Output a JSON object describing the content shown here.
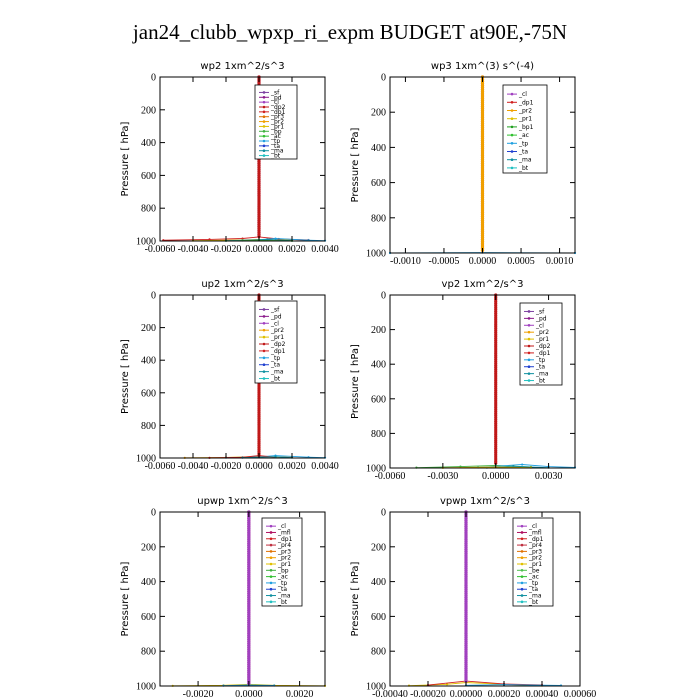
{
  "title": "jan24_clubb_wpxp_ri_expm  BUDGET at90E,-75N",
  "colors": {
    "sf": "#7b3fa0",
    "pd": "#8b1a8b",
    "cl": "#a040c0",
    "dp2": "#c01818",
    "dp1": "#d02020",
    "pr3": "#e07000",
    "pr2": "#f0a000",
    "pr1": "#e0c000",
    "bp1": "#20a020",
    "bp": "#40b040",
    "ac": "#30c030",
    "tp": "#20a0e0",
    "ta": "#2040d0",
    "ma": "#1090a0",
    "bt": "#20c0c0",
    "mfl": "#b01060",
    "pr4": "#c03040",
    "be": "#50c050"
  },
  "chart_data": [
    {
      "type": "line",
      "title": "wp2   1xm^2/s^3",
      "ylabel": "Pressure  [ hPa]",
      "xlim": [
        -0.006,
        0.004
      ],
      "ylim": [
        1000,
        0
      ],
      "xticks": [
        -0.006,
        -0.004,
        -0.002,
        0.0,
        0.002,
        0.004
      ],
      "xtick_labels": [
        "-0.0060",
        "-0.0040",
        "-0.0020",
        "0.0000",
        "0.0020",
        "0.0040"
      ],
      "yticks": [
        0,
        200,
        400,
        600,
        800,
        1000
      ],
      "ytick_labels": [
        "0",
        "200",
        "400",
        "600",
        "800",
        "1000"
      ],
      "legend": [
        "_sf",
        "_pd",
        "_cl",
        "_dp2",
        "_dp1",
        "_pr3",
        "_pr2",
        "_pr1",
        "_bp",
        "_ac",
        "_tp",
        "_ta",
        "_ma",
        "_bt"
      ],
      "legend_keys": [
        "sf",
        "pd",
        "cl",
        "dp2",
        "dp1",
        "pr3",
        "pr2",
        "pr1",
        "bp",
        "ac",
        "tp",
        "ta",
        "ma",
        "bt"
      ],
      "series": [
        {
          "key": "dp1",
          "points": [
            [
              -0.0058,
              995
            ],
            [
              -0.003,
              990
            ],
            [
              -0.001,
              985
            ],
            [
              0.0,
              975
            ],
            [
              0.0012,
              988
            ],
            [
              0.003,
              994
            ]
          ]
        },
        {
          "key": "pr1",
          "points": [
            [
              -0.004,
              998
            ],
            [
              -0.001,
              994
            ],
            [
              0.0,
              990
            ],
            [
              0.002,
              995
            ]
          ]
        },
        {
          "key": "tp",
          "points": [
            [
              -0.002,
              998
            ],
            [
              0.0,
              992
            ],
            [
              0.001,
              985
            ],
            [
              0.003,
              995
            ],
            [
              0.004,
              998
            ]
          ]
        },
        {
          "key": "ma",
          "points": [
            [
              -0.001,
              997
            ],
            [
              0.0005,
              990
            ],
            [
              0.002,
              998
            ]
          ]
        },
        {
          "key": "bp",
          "points": [
            [
              -0.002,
              999
            ],
            [
              0.0,
              996
            ],
            [
              0.002,
              999
            ]
          ]
        },
        {
          "key": "pd",
          "points": [
            [
              0.0,
              0
            ],
            [
              0.0,
              980
            ]
          ],
          "dense": true
        },
        {
          "key": "dp2",
          "points": [
            [
              0.0,
              0
            ],
            [
              0.0,
              980
            ]
          ],
          "dense": true
        }
      ]
    },
    {
      "type": "line",
      "title": "wp3   1xm^(3) s^(-4)",
      "ylabel": "Pressure  [ hPa]",
      "xlim": [
        -0.0012,
        0.0012
      ],
      "ylim": [
        1000,
        0
      ],
      "xticks": [
        -0.001,
        -0.0005,
        0.0,
        0.0005,
        0.001
      ],
      "xtick_labels": [
        "-0.0010",
        "-0.0005",
        "0.0000",
        "0.0005",
        "0.0010"
      ],
      "yticks": [
        0,
        200,
        400,
        600,
        800,
        1000
      ],
      "ytick_labels": [
        "0",
        "200",
        "400",
        "600",
        "800",
        "1000"
      ],
      "legend": [
        "_cl",
        "_dp1",
        "_pr2",
        "_pr1",
        "_bp1",
        "_ac",
        "_tp",
        "_ta",
        "_ma",
        "_bt"
      ],
      "legend_keys": [
        "cl",
        "dp1",
        "pr2",
        "pr1",
        "bp1",
        "ac",
        "tp",
        "ta",
        "ma",
        "bt"
      ],
      "series": [
        {
          "key": "tp",
          "points": [
            [
              -0.0012,
              1000
            ],
            [
              0.0,
              998
            ],
            [
              0.0012,
              1000
            ]
          ]
        },
        {
          "key": "dp1",
          "points": [
            [
              0.0,
              0
            ],
            [
              0.0,
              995
            ]
          ],
          "dense": true
        },
        {
          "key": "pr2",
          "points": [
            [
              0.0,
              0
            ],
            [
              0.0,
              995
            ]
          ],
          "dense": true
        }
      ]
    },
    {
      "type": "line",
      "title": "up2   1xm^2/s^3",
      "ylabel": "Pressure  [ hPa]",
      "xlim": [
        -0.006,
        0.004
      ],
      "ylim": [
        1000,
        0
      ],
      "xticks": [
        -0.006,
        -0.004,
        -0.002,
        0.0,
        0.002,
        0.004
      ],
      "xtick_labels": [
        "-0.0060",
        "-0.0040",
        "-0.0020",
        "0.0000",
        "0.0020",
        "0.0040"
      ],
      "yticks": [
        0,
        200,
        400,
        600,
        800,
        1000
      ],
      "ytick_labels": [
        "0",
        "200",
        "400",
        "600",
        "800",
        "1000"
      ],
      "legend": [
        "_sf",
        "_pd",
        "_cl",
        "_pr2",
        "_pr1",
        "_dp2",
        "_dp1",
        "_tp",
        "_ta",
        "_ma",
        "_bt"
      ],
      "legend_keys": [
        "sf",
        "pd",
        "cl",
        "pr2",
        "pr1",
        "dp2",
        "dp1",
        "tp",
        "ta",
        "ma",
        "bt"
      ],
      "series": [
        {
          "key": "pr2",
          "points": [
            [
              -0.0045,
              999
            ],
            [
              -0.002,
              997
            ],
            [
              0.0,
              990
            ],
            [
              0.002,
              996
            ]
          ]
        },
        {
          "key": "tp",
          "points": [
            [
              -0.002,
              998
            ],
            [
              0.0,
              993
            ],
            [
              0.001,
              985
            ],
            [
              0.003,
              995
            ],
            [
              0.004,
              998
            ]
          ]
        },
        {
          "key": "dp1",
          "points": [
            [
              -0.003,
              999
            ],
            [
              -0.001,
              996
            ],
            [
              0.0,
              985
            ],
            [
              0.001,
              995
            ]
          ]
        },
        {
          "key": "ma",
          "points": [
            [
              -0.001,
              998
            ],
            [
              0.001,
              992
            ],
            [
              0.002,
              998
            ]
          ]
        },
        {
          "key": "dp2",
          "points": [
            [
              0.0,
              0
            ],
            [
              0.0,
              985
            ]
          ],
          "dense": true
        }
      ]
    },
    {
      "type": "line",
      "title": "vp2   1xm^2/s^3",
      "ylabel": "Pressure  [ hPa]",
      "xlim": [
        -0.006,
        0.0045
      ],
      "ylim": [
        1000,
        0
      ],
      "xticks": [
        -0.006,
        -0.003,
        0.0,
        0.003
      ],
      "xtick_labels": [
        "-0.0060",
        "-0.0030",
        "0.0000",
        "0.0030"
      ],
      "yticks": [
        0,
        200,
        400,
        600,
        800,
        1000
      ],
      "ytick_labels": [
        "0",
        "200",
        "400",
        "600",
        "800",
        "1000"
      ],
      "legend": [
        "_sf",
        "_pd",
        "_cl",
        "_pr2",
        "_pr1",
        "_dp2",
        "_dp1",
        "_tp",
        "_ta",
        "_ma",
        "_bt"
      ],
      "legend_keys": [
        "sf",
        "pd",
        "cl",
        "pr2",
        "pr1",
        "dp2",
        "dp1",
        "tp",
        "ta",
        "ma",
        "bt"
      ],
      "series": [
        {
          "key": "bp",
          "points": [
            [
              -0.0045,
              998
            ],
            [
              -0.002,
              992
            ],
            [
              0.0,
              985
            ],
            [
              0.002,
              994
            ]
          ]
        },
        {
          "key": "tp",
          "points": [
            [
              -0.001,
              997
            ],
            [
              0.0,
              990
            ],
            [
              0.0015,
              980
            ],
            [
              0.003,
              992
            ],
            [
              0.0045,
              997
            ]
          ]
        },
        {
          "key": "ma",
          "points": [
            [
              -0.0005,
              998
            ],
            [
              0.001,
              990
            ],
            [
              0.003,
              998
            ]
          ]
        },
        {
          "key": "pr1",
          "points": [
            [
              -0.003,
              999
            ],
            [
              0.0,
              994
            ],
            [
              0.002,
              998
            ]
          ]
        },
        {
          "key": "dp2",
          "points": [
            [
              0.0,
              0
            ],
            [
              0.0,
              980
            ]
          ],
          "dense": true
        }
      ]
    },
    {
      "type": "line",
      "title": "upwp   1xm^2/s^3",
      "ylabel": "Pressure  [ hPa]",
      "xlim": [
        -0.0035,
        0.003
      ],
      "ylim": [
        1000,
        0
      ],
      "xticks": [
        -0.002,
        0.0,
        0.002
      ],
      "xtick_labels": [
        "-0.0020",
        "0.0000",
        "0.0020"
      ],
      "yticks": [
        0,
        200,
        400,
        600,
        800,
        1000
      ],
      "ytick_labels": [
        "0",
        "200",
        "400",
        "600",
        "800",
        "1000"
      ],
      "legend": [
        "_cl",
        "_mfl",
        "_dp1",
        "_pr4",
        "_pr3",
        "_pr2",
        "_pr1",
        "_bp",
        "_ac",
        "_tp",
        "_ta",
        "_ma",
        "_bt"
      ],
      "legend_keys": [
        "cl",
        "mfl",
        "dp1",
        "pr4",
        "pr3",
        "pr2",
        "pr1",
        "bp",
        "ac",
        "tp",
        "ta",
        "ma",
        "bt"
      ],
      "series": [
        {
          "key": "pr1",
          "points": [
            [
              -0.003,
              999
            ],
            [
              -0.001,
              996
            ],
            [
              0.0,
              990
            ],
            [
              0.001,
              996
            ],
            [
              0.003,
              999
            ]
          ]
        },
        {
          "key": "tp",
          "points": [
            [
              -0.001,
              998
            ],
            [
              0.0,
              994
            ],
            [
              0.001,
              997
            ]
          ]
        },
        {
          "key": "mfl",
          "points": [
            [
              0.0,
              0
            ],
            [
              0.0,
              990
            ]
          ],
          "dense": true
        },
        {
          "key": "cl",
          "points": [
            [
              0.0,
              0
            ],
            [
              0.0,
              990
            ]
          ],
          "dense": true
        }
      ]
    },
    {
      "type": "line",
      "title": "vpwp   1xm^2/s^3",
      "ylabel": "Pressure  [ hPa]",
      "xlim": [
        -0.0004,
        0.0006
      ],
      "ylim": [
        1000,
        0
      ],
      "xticks": [
        -0.0004,
        -0.0002,
        0.0,
        0.0002,
        0.0004,
        0.0006
      ],
      "xtick_labels": [
        "-0.00040",
        "-0.00020",
        "0.00000",
        "0.00020",
        "0.00040",
        "0.00060"
      ],
      "yticks": [
        0,
        200,
        400,
        600,
        800,
        1000
      ],
      "ytick_labels": [
        "0",
        "200",
        "400",
        "600",
        "800",
        "1000"
      ],
      "legend": [
        "_cl",
        "_mfl",
        "_dp1",
        "_pr4",
        "_pr3",
        "_pr2",
        "_pr1",
        "_be",
        "_ac",
        "_tp",
        "_ta",
        "_ma",
        "_bt"
      ],
      "legend_keys": [
        "cl",
        "mfl",
        "dp1",
        "pr4",
        "pr3",
        "pr2",
        "pr1",
        "be",
        "ac",
        "tp",
        "ta",
        "ma",
        "bt"
      ],
      "series": [
        {
          "key": "pr1",
          "points": [
            [
              -0.0003,
              998
            ],
            [
              -0.0001,
              990
            ],
            [
              0.0,
              980
            ],
            [
              0.0002,
              990
            ],
            [
              0.0004,
              998
            ]
          ]
        },
        {
          "key": "dp1",
          "points": [
            [
              -0.0002,
              995
            ],
            [
              0.0,
              972
            ],
            [
              0.0002,
              988
            ],
            [
              0.0004,
              994
            ]
          ]
        },
        {
          "key": "tp",
          "points": [
            [
              0.0,
              996
            ],
            [
              0.0002,
              992
            ],
            [
              0.0005,
              997
            ]
          ]
        },
        {
          "key": "mfl",
          "points": [
            [
              0.0,
              0
            ],
            [
              0.0,
              975
            ]
          ],
          "dense": true
        },
        {
          "key": "cl",
          "points": [
            [
              0.0,
              0
            ],
            [
              0.0,
              975
            ]
          ],
          "dense": true
        }
      ]
    }
  ]
}
